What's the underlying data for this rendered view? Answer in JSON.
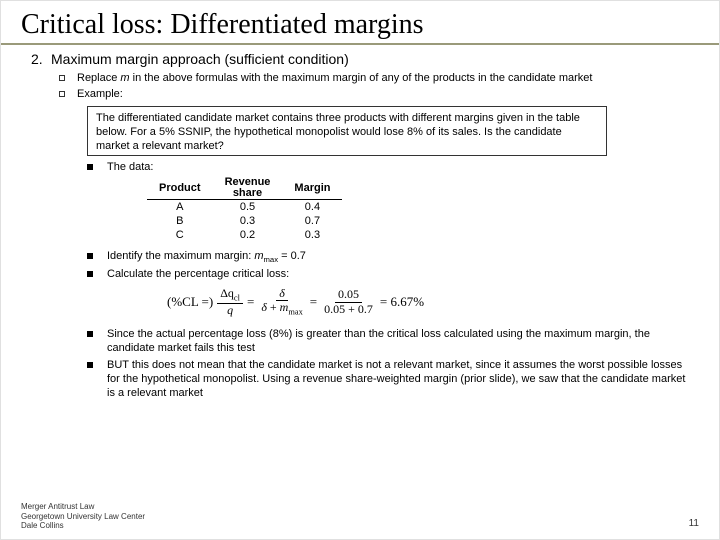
{
  "title": "Critical loss: Differentiated margins",
  "heading": {
    "num": "2.",
    "text": "Maximum margin approach (sufficient condition)"
  },
  "bullets": {
    "a": "Replace m in the above formulas with the maximum margin of any of the products in the candidate market",
    "b": "Example:"
  },
  "box": "The differentiated candidate market contains three products with different margins given in the table below. For a 5% SSNIP, the hypothetical monopolist would lose 8% of its sales. Is the candidate market a relevant market?",
  "n1": "The data:",
  "table": {
    "headers": {
      "c1": "Product",
      "c2a": "Revenue",
      "c2b": "share",
      "c3": "Margin"
    },
    "rows": [
      {
        "p": "A",
        "s": "0.5",
        "m": "0.4"
      },
      {
        "p": "B",
        "s": "0.3",
        "m": "0.7"
      },
      {
        "p": "C",
        "s": "0.2",
        "m": "0.3"
      }
    ]
  },
  "n2": {
    "pre": "Identify the maximum margin: ",
    "var": "m",
    "sub": "max",
    "post": " = 0.7"
  },
  "n3": "Calculate the percentage critical loss:",
  "formula": {
    "lhs": "(%CL =)",
    "f1top": "Δqcl",
    "f1bot": "q",
    "eq": "=",
    "f2top": "δ",
    "f2bot": "δ + mmax",
    "f3top": "0.05",
    "f3bot": "0.05 + 0.7",
    "rhs": "= 6.67%"
  },
  "n4": "Since the actual percentage loss (8%) is greater than the critical loss calculated using the maximum margin, the candidate market fails this test",
  "n5": "BUT this does not mean that the candidate market is not a relevant market, since it assumes the worst possible losses for the hypothetical monopolist. Using a revenue share-weighted margin (prior slide), we saw that the candidate market is a relevant market",
  "footer": {
    "l1": "Merger Antitrust Law",
    "l2": "Georgetown University Law Center",
    "l3": "Dale Collins"
  },
  "page": "11"
}
